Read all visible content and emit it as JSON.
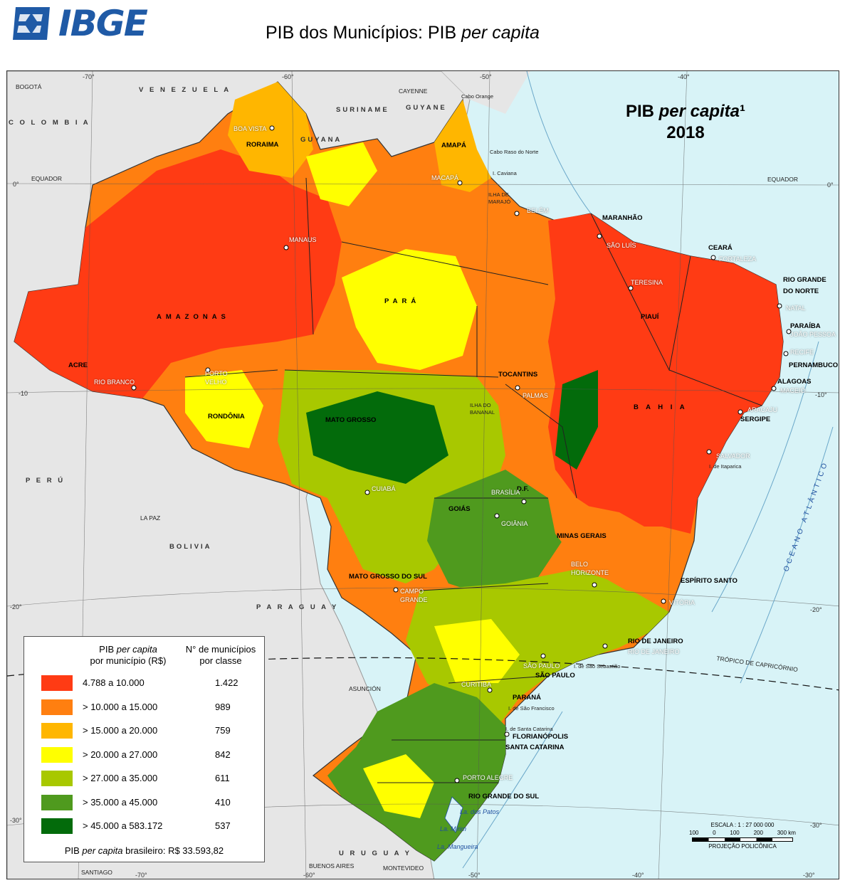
{
  "header": {
    "logo_text": "IBGE",
    "title_main": "PIB dos Municípios: PIB ",
    "title_italic": "per capita"
  },
  "map": {
    "title_line1_main": "PIB ",
    "title_line1_italic": "per capita",
    "title_line1_sup": "¹",
    "title_line2": "2018",
    "colors": {
      "sea": "#d8f3f7",
      "land_foreign": "#e6e6e6",
      "border": "#222222",
      "c1": "#ff3b14",
      "c2": "#ff7f10",
      "c3": "#ffb600",
      "c4": "#ffff00",
      "c5": "#a8c800",
      "c6": "#4f9a1e",
      "c7": "#036b0b"
    },
    "states": [
      "RORAIMA",
      "AMAPÁ",
      "AMAZONAS",
      "PARÁ",
      "MARANHÃO",
      "CEARÁ",
      "RIO GRANDE",
      "DO NORTE",
      "PARAÍBA",
      "PERNAMBUCO",
      "ALAGOAS",
      "SERGIPE",
      "PIAUÍ",
      "B A H I A",
      "TOCANTINS",
      "ACRE",
      "RONDÔNIA",
      "MATO  GROSSO",
      "GOIÁS",
      "D.F.",
      "MINAS GERAIS",
      "ESPÍRITO SANTO",
      "RIO DE JANEIRO",
      "SÃO PAULO",
      "PARANÁ",
      "SANTA CATARINA",
      "RIO GRANDE DO SUL",
      "MATO GROSSO DO SUL"
    ],
    "cities": [
      "BOA VISTA",
      "MACAPÁ",
      "BELÉM",
      "SÃO LUÍS",
      "FORTALEZA",
      "TERESINA",
      "NATAL",
      "JOÃO PESSOA",
      "RECIFE",
      "MACEIÓ",
      "ARACAJU",
      "SALVADOR",
      "PALMAS",
      "MANAUS",
      "RIO BRANCO",
      "PORTO",
      "VELHO",
      "CUIABÁ",
      "BRASÍLIA",
      "GOIÂNIA",
      "CAMPO",
      "GRANDE",
      "BELO",
      "HORIZONTE",
      "VITÓRIA",
      "RIO DE JANEIRO",
      "SÃO PAULO",
      "CURITIBA",
      "FLORIANÓPOLIS",
      "PORTO ALEGRE"
    ],
    "foreign": [
      "BOGOTÁ",
      "V E N E Z U E L A",
      "C O L O M B I A",
      "SURINAME",
      "CAYENNE",
      "GUYANE",
      "GUYANA",
      "P E R Ú",
      "BOLIVIA",
      "LA PAZ",
      "P A R A G U A Y",
      "ASUNCIÓN",
      "U R U G U A Y",
      "BUENOS AIRES",
      "MONTEVIDEO",
      "SANTIAGO"
    ],
    "water": [
      "OCEANO  ATLÂNTICO",
      "La. dos Patos",
      "La. Mirim",
      "La. Mangueira"
    ],
    "misc": [
      "Cabo Orange",
      "Cabo Raso do Norte",
      "I. Caviana",
      "ILHA DE",
      "MARAJÓ",
      "I. de Itaparica",
      "I. de São Sebastião",
      "I. de São Francisco",
      "I. de Santa Catarina",
      "ILHA DO",
      "BANANAL",
      "EQUADOR",
      "EQUADOR",
      "TRÓPICO DE CAPRICÓRNIO"
    ],
    "grid": [
      "-70°",
      "-60°",
      "-50°",
      "-40°",
      "0°",
      "0°",
      "-10",
      "-10°",
      "-20°",
      "-20°",
      "-30°",
      "-30°",
      "-70°",
      "-60°",
      "-50°",
      "-40°",
      "-30°"
    ]
  },
  "legend": {
    "header_col1_a": "PIB ",
    "header_col1_italic": "per capita",
    "header_col1_b": "por município (R$)",
    "header_col2_a": "N° de municípios",
    "header_col2_b": "por classe",
    "rows": [
      {
        "range": "4.788 a 10.000",
        "count": "1.422",
        "color": "#ff3b14"
      },
      {
        "range": "> 10.000 a 15.000",
        "count": "989",
        "color": "#ff7f10"
      },
      {
        "range": "> 15.000 a 20.000",
        "count": "759",
        "color": "#ffb600"
      },
      {
        "range": "> 20.000 a 27.000",
        "count": "842",
        "color": "#ffff00"
      },
      {
        "range": "> 27.000 a 35.000",
        "count": "611",
        "color": "#a8c800"
      },
      {
        "range": "> 35.000 a 45.000",
        "count": "410",
        "color": "#4f9a1e"
      },
      {
        "range": "> 45.000 a 583.172",
        "count": "537",
        "color": "#036b0b"
      }
    ],
    "foot_a": "PIB ",
    "foot_italic": "per capita",
    "foot_b": " brasileiro: R$ 33.593,82"
  },
  "scale": {
    "title": "ESCALA : 1 : 27 000 000",
    "ticks": [
      "100",
      "0",
      "100",
      "200",
      "300 km"
    ],
    "projection": "PROJEÇÃO POLICÔNICA"
  }
}
